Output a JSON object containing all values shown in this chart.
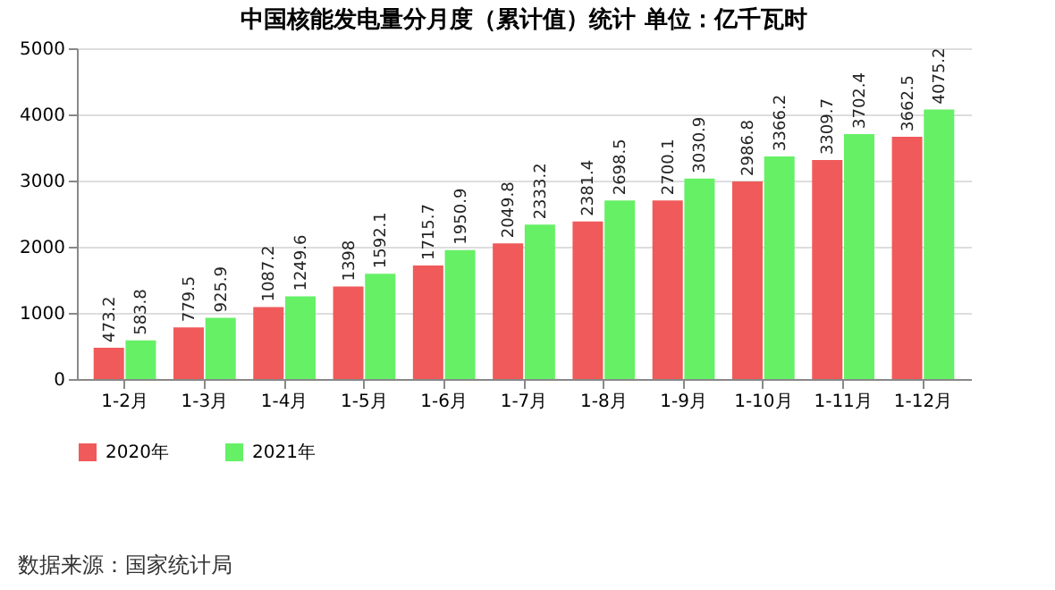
{
  "chart_data": {
    "type": "bar",
    "title": "中国核能发电量分月度（累计值）统计 单位：亿千瓦时",
    "categories": [
      "1-2月",
      "1-3月",
      "1-4月",
      "1-5月",
      "1-6月",
      "1-7月",
      "1-8月",
      "1-9月",
      "1-10月",
      "1-11月",
      "1-12月"
    ],
    "series": [
      {
        "name": "2020年",
        "color": "#f05a5a",
        "values": [
          473.2,
          779.5,
          1087.2,
          1398,
          1715.7,
          2049.8,
          2381.4,
          2700.1,
          2986.8,
          3309.7,
          3662.5
        ]
      },
      {
        "name": "2021年",
        "color": "#66f066",
        "values": [
          583.8,
          925.9,
          1249.6,
          1592.1,
          1950.9,
          2333.2,
          2698.5,
          3030.9,
          3366.2,
          3702.4,
          4075.2
        ]
      }
    ],
    "ylim": [
      0,
      5000
    ],
    "yticks": [
      0,
      1000,
      2000,
      3000,
      4000,
      5000
    ],
    "grid": "y",
    "legend": "bottom",
    "data_labels": true,
    "annotations": [
      "数据来源：国家统计局"
    ]
  }
}
